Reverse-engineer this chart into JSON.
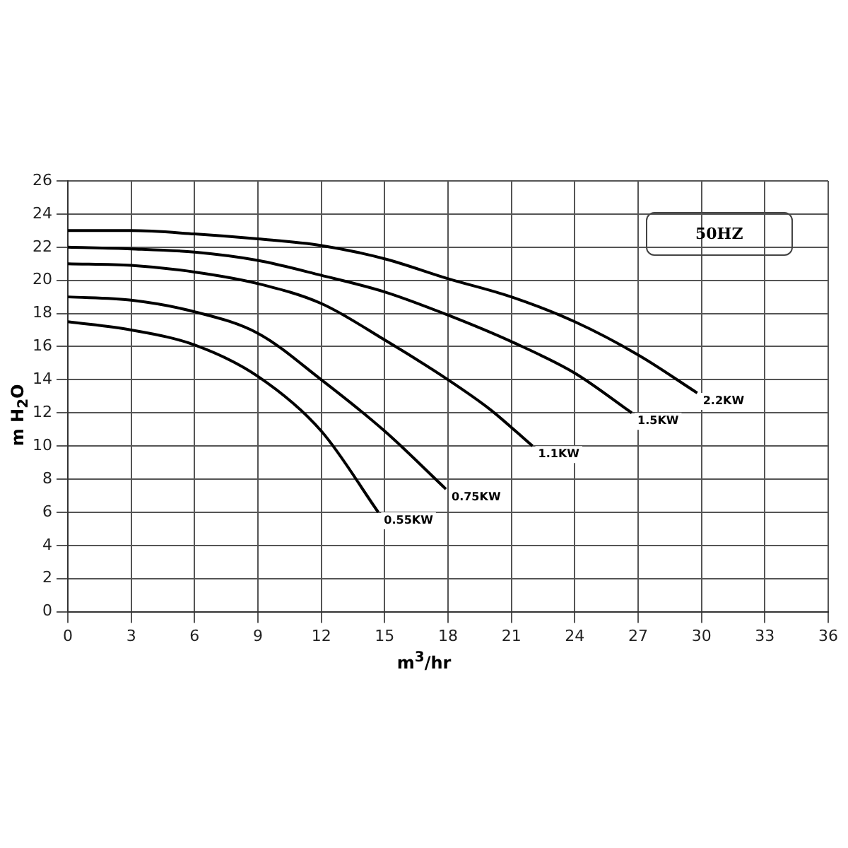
{
  "chart_data": {
    "type": "line",
    "xlabel": "m$^{3}$/hr",
    "ylabel": "m H$_{2}$O",
    "xlim": [
      0,
      36
    ],
    "xticks": [
      0,
      3,
      6,
      9,
      12,
      15,
      18,
      21,
      24,
      27,
      30,
      33,
      36
    ],
    "ylim": [
      0,
      26
    ],
    "yticks": [
      0,
      2,
      4,
      6,
      8,
      10,
      12,
      14,
      16,
      18,
      20,
      22,
      24,
      26
    ],
    "grid": true,
    "legend": false,
    "marker": "none",
    "line_style": "solid",
    "series": [
      {
        "color": "#000000",
        "x": [
          0,
          3,
          6,
          9,
          12,
          15,
          18,
          21,
          24,
          27,
          29.8
        ],
        "values": [
          23,
          23,
          22.8,
          22.5,
          22.1,
          21.3,
          20.1,
          19.0,
          17.5,
          15.5,
          13.2
        ]
      },
      {
        "color": "#000000",
        "x": [
          0,
          3,
          6,
          9,
          12,
          15,
          18,
          21,
          24,
          26.7
        ],
        "values": [
          22,
          21.9,
          21.7,
          21.2,
          20.3,
          19.3,
          17.9,
          16.3,
          14.4,
          12
        ]
      },
      {
        "color": "#000000",
        "x": [
          0,
          3,
          6,
          9,
          12,
          15,
          18,
          20,
          22
        ],
        "values": [
          21,
          20.9,
          20.5,
          19.8,
          18.6,
          16.4,
          14,
          12.2,
          10
        ]
      },
      {
        "color": "#000000",
        "x": [
          0,
          3,
          6,
          9,
          12,
          15,
          17.9
        ],
        "values": [
          19,
          18.8,
          18.1,
          16.8,
          14,
          10.9,
          7.4
        ]
      },
      {
        "color": "#000000",
        "x": [
          0,
          3,
          6,
          9,
          12,
          14.7
        ],
        "values": [
          17.5,
          17,
          16.1,
          14.2,
          10.9,
          6
        ]
      }
    ],
    "annotations": [
      {
        "text": "2.2KW",
        "x": 29.8,
        "y": 13.2
      },
      {
        "text": "1.5KW",
        "x": 26.7,
        "y": 12
      },
      {
        "text": "1.1KW",
        "x": 22,
        "y": 10
      },
      {
        "text": "0.75KW",
        "x": 17.9,
        "y": 7.4
      },
      {
        "text": "0.55KW",
        "x": 14.7,
        "y": 6
      },
      "50HZ"
    ]
  }
}
